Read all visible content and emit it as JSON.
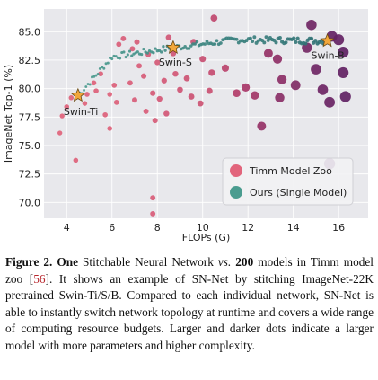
{
  "chart_data": {
    "type": "scatter",
    "title": "",
    "xlabel": "FLOPs (G)",
    "ylabel": "ImageNet Top-1 (%)",
    "xlim": [
      3.0,
      17.3
    ],
    "ylim": [
      68.6,
      87.0
    ],
    "xticks": [
      4,
      6,
      8,
      10,
      12,
      14,
      16
    ],
    "yticks": [
      70.0,
      72.5,
      75.0,
      77.5,
      80.0,
      82.5,
      85.0
    ],
    "grid": true,
    "background": "#e8e8ec",
    "legend": {
      "position": "bottom-right",
      "entries": [
        "Timm Model Zoo",
        "Ours (Single Model)"
      ]
    },
    "colors": {
      "timm_light": "#e2657c",
      "timm_mid": "#b03a68",
      "timm_dark": "#5b1f63",
      "ours": "#4a9c8f",
      "star": "#f2a73b"
    },
    "series": [
      {
        "name": "Timm Model Zoo",
        "points": [
          [
            4.4,
            73.7,
            0.05
          ],
          [
            3.7,
            76.1,
            0.02
          ],
          [
            3.8,
            77.6,
            0.03
          ],
          [
            4.0,
            78.4,
            0.05
          ],
          [
            4.2,
            79.2,
            0.04
          ],
          [
            4.8,
            78.7,
            0.04
          ],
          [
            4.9,
            79.5,
            0.06
          ],
          [
            5.2,
            80.5,
            0.05
          ],
          [
            5.3,
            79.8,
            0.06
          ],
          [
            5.5,
            81.3,
            0.07
          ],
          [
            5.9,
            79.5,
            0.05
          ],
          [
            6.1,
            80.3,
            0.07
          ],
          [
            5.7,
            77.7,
            0.06
          ],
          [
            5.9,
            76.5,
            0.05
          ],
          [
            6.2,
            78.8,
            0.07
          ],
          [
            6.3,
            83.9,
            0.09
          ],
          [
            6.5,
            84.4,
            0.1
          ],
          [
            6.9,
            83.5,
            0.1
          ],
          [
            7.1,
            84.1,
            0.12
          ],
          [
            6.8,
            80.5,
            0.09
          ],
          [
            7.2,
            82.0,
            0.1
          ],
          [
            7.0,
            79.0,
            0.11
          ],
          [
            7.4,
            81.1,
            0.12
          ],
          [
            7.6,
            83.0,
            0.12
          ],
          [
            7.5,
            78.0,
            0.1
          ],
          [
            7.9,
            77.2,
            0.12
          ],
          [
            7.8,
            79.6,
            0.14
          ],
          [
            8.1,
            79.1,
            0.16
          ],
          [
            8.3,
            80.7,
            0.15
          ],
          [
            8.0,
            82.3,
            0.14
          ],
          [
            8.5,
            84.5,
            0.18
          ],
          [
            8.7,
            83.1,
            0.19
          ],
          [
            8.8,
            81.3,
            0.17
          ],
          [
            8.4,
            77.8,
            0.16
          ],
          [
            9.0,
            79.9,
            0.2
          ],
          [
            9.3,
            80.9,
            0.22
          ],
          [
            9.5,
            79.3,
            0.23
          ],
          [
            9.9,
            78.7,
            0.22
          ],
          [
            10.3,
            79.8,
            0.25
          ],
          [
            9.6,
            84.1,
            0.24
          ],
          [
            10.0,
            82.6,
            0.27
          ],
          [
            10.4,
            81.4,
            0.3
          ],
          [
            10.5,
            86.2,
            0.35
          ],
          [
            11.0,
            81.8,
            0.4
          ],
          [
            11.5,
            79.6,
            0.48
          ],
          [
            11.9,
            80.1,
            0.55
          ],
          [
            12.3,
            79.4,
            0.58
          ],
          [
            12.9,
            83.1,
            0.66
          ],
          [
            13.3,
            82.6,
            0.7
          ],
          [
            13.5,
            80.8,
            0.72
          ],
          [
            12.6,
            76.7,
            0.66
          ],
          [
            13.4,
            79.2,
            0.73
          ],
          [
            14.1,
            80.3,
            0.78
          ],
          [
            14.6,
            83.6,
            0.86
          ],
          [
            14.8,
            85.6,
            0.88
          ],
          [
            15.0,
            81.7,
            0.89
          ],
          [
            15.3,
            79.9,
            0.9
          ],
          [
            15.6,
            78.8,
            0.92
          ],
          [
            16.0,
            84.3,
            0.95
          ],
          [
            16.2,
            81.4,
            0.96
          ],
          [
            16.3,
            79.3,
            0.97
          ],
          [
            15.7,
            84.6,
            0.95
          ],
          [
            16.2,
            83.2,
            0.98
          ],
          [
            15.6,
            73.4,
            0.99
          ],
          [
            7.8,
            70.4,
            0.1
          ],
          [
            7.8,
            69.0,
            0.1
          ]
        ]
      },
      {
        "name": "Ours (Single Model)",
        "x_range": [
          4.5,
          15.6
        ],
        "y_range": [
          79.4,
          84.4
        ]
      }
    ],
    "annotations": [
      {
        "text": "Swin-Ti",
        "x": 4.5,
        "y": 79.4
      },
      {
        "text": "Swin-S",
        "x": 8.7,
        "y": 83.6
      },
      {
        "text": "Swin-B",
        "x": 15.5,
        "y": 84.2
      }
    ]
  },
  "caption": {
    "label": "Figure 2.",
    "bold_one": "One",
    "t1": " Stitchable Neural Network ",
    "vs": "vs.",
    "t2": " ",
    "bold_200": "200",
    "t3": " models in Timm model zoo [",
    "ref": "56",
    "t4": "].  It shows an example of SN-Net by stitching ImageNet-22K pretrained Swin-Ti/S/B. Compared to each individual network, SN-Net is able to instantly switch network topology at runtime and covers a wide range of computing resource budgets. Larger and darker dots indicate a larger model with more parameters and higher complexity."
  }
}
